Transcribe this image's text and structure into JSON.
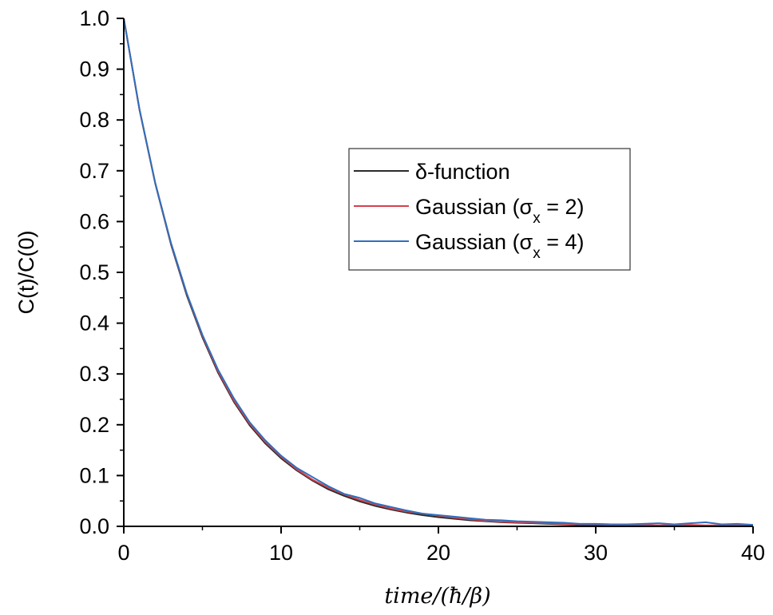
{
  "chart_data": {
    "type": "line",
    "title": "",
    "xlabel": "time/(ħ/β)",
    "ylabel": "C(t)/C(0)",
    "xlim": [
      0,
      40
    ],
    "ylim": [
      0.0,
      1.0
    ],
    "x_ticks": [
      0,
      10,
      20,
      30,
      40
    ],
    "x_tick_labels": [
      "0",
      "10",
      "20",
      "30",
      "40"
    ],
    "y_ticks": [
      0.0,
      0.1,
      0.2,
      0.3,
      0.4,
      0.5,
      0.6,
      0.7,
      0.8,
      0.9,
      1.0
    ],
    "y_tick_labels": [
      "0.0",
      "0.1",
      "0.2",
      "0.3",
      "0.4",
      "0.5",
      "0.6",
      "0.7",
      "0.8",
      "0.9",
      "1.0"
    ],
    "grid": false,
    "legend_position": "center-right",
    "legend": [
      {
        "label_main": "δ-function",
        "label_sub": "",
        "label_tail": "",
        "color": "#2b2b2b"
      },
      {
        "label_main": "Gaussian (σ",
        "label_sub": "x",
        "label_tail": " = 2)",
        "color": "#d6404a"
      },
      {
        "label_main": "Gaussian (σ",
        "label_sub": "x",
        "label_tail": " = 4)",
        "color": "#2f6fbd"
      }
    ],
    "x": [
      0,
      1,
      2,
      3,
      4,
      5,
      6,
      7,
      8,
      9,
      10,
      11,
      12,
      13,
      14,
      15,
      16,
      17,
      18,
      19,
      20,
      21,
      22,
      23,
      24,
      25,
      26,
      27,
      28,
      29,
      30,
      31,
      32,
      33,
      34,
      35,
      36,
      37,
      38,
      39,
      40
    ],
    "series": [
      {
        "name": "δ-function",
        "color": "#2b2b2b",
        "values": [
          1.0,
          0.82,
          0.675,
          0.555,
          0.455,
          0.372,
          0.302,
          0.245,
          0.199,
          0.163,
          0.134,
          0.11,
          0.09,
          0.073,
          0.06,
          0.049,
          0.04,
          0.033,
          0.027,
          0.022,
          0.018,
          0.015,
          0.012,
          0.01,
          0.008,
          0.007,
          0.006,
          0.005,
          0.004,
          0.003,
          0.003,
          0.002,
          0.002,
          0.002,
          0.001,
          0.001,
          0.001,
          0.001,
          0.001,
          0.0,
          0.0
        ]
      },
      {
        "name": "Gaussian (σx = 2)",
        "color": "#d6404a",
        "values": [
          1.0,
          0.82,
          0.676,
          0.557,
          0.458,
          0.375,
          0.305,
          0.248,
          0.202,
          0.166,
          0.137,
          0.112,
          0.092,
          0.076,
          0.063,
          0.052,
          0.043,
          0.035,
          0.029,
          0.025,
          0.021,
          0.017,
          0.014,
          0.011,
          0.009,
          0.008,
          0.007,
          0.006,
          0.005,
          0.004,
          0.004,
          0.003,
          0.003,
          0.003,
          0.002,
          0.003,
          0.003,
          0.002,
          0.002,
          0.003,
          0.002
        ]
      },
      {
        "name": "Gaussian (σx = 4)",
        "color": "#2f6fbd",
        "values": [
          1.0,
          0.821,
          0.676,
          0.558,
          0.459,
          0.377,
          0.308,
          0.252,
          0.205,
          0.169,
          0.139,
          0.115,
          0.097,
          0.079,
          0.064,
          0.056,
          0.045,
          0.038,
          0.031,
          0.025,
          0.022,
          0.019,
          0.016,
          0.013,
          0.012,
          0.01,
          0.009,
          0.008,
          0.007,
          0.005,
          0.005,
          0.004,
          0.004,
          0.005,
          0.006,
          0.004,
          0.006,
          0.008,
          0.004,
          0.005,
          0.003
        ]
      }
    ]
  }
}
